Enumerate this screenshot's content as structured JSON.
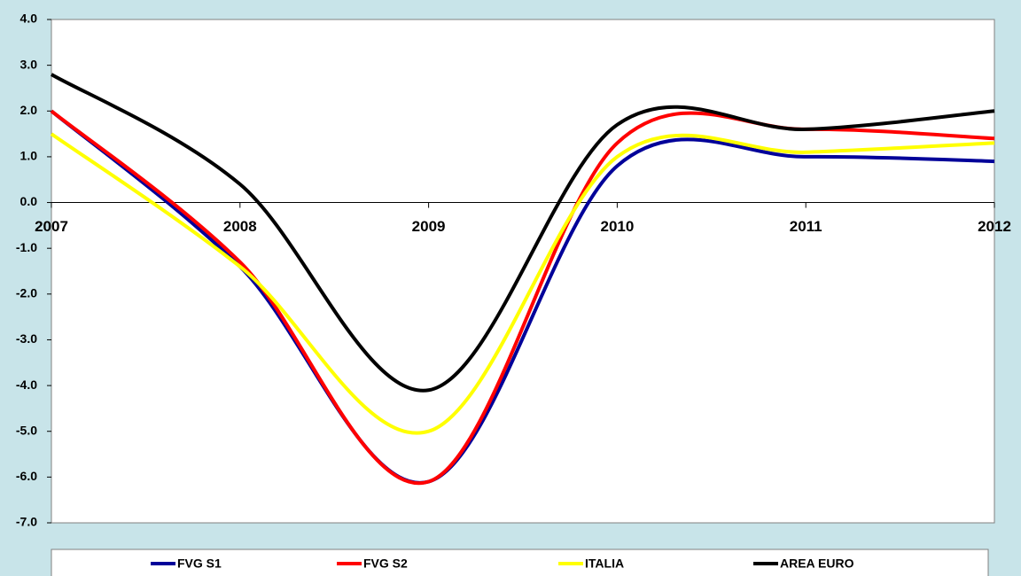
{
  "chart_data": {
    "type": "line",
    "categories": [
      "2007",
      "2008",
      "2009",
      "2010",
      "2011",
      "2012"
    ],
    "series": [
      {
        "name": "FVG S1",
        "color": "#000099",
        "values": [
          2.0,
          -1.4,
          -6.1,
          0.8,
          1.0,
          0.9
        ]
      },
      {
        "name": "FVG S2",
        "color": "#ff0000",
        "values": [
          2.0,
          -1.3,
          -6.1,
          1.3,
          1.6,
          1.4
        ]
      },
      {
        "name": "ITALIA",
        "color": "#ffff00",
        "values": [
          1.5,
          -1.4,
          -5.0,
          1.0,
          1.1,
          1.3
        ]
      },
      {
        "name": "AREA EURO",
        "color": "#000000",
        "values": [
          2.8,
          0.4,
          -4.1,
          1.7,
          1.6,
          2.0
        ]
      }
    ],
    "ylim": [
      -7,
      4
    ],
    "yticks": [
      {
        "value": 4,
        "label": "4.0"
      },
      {
        "value": 3,
        "label": "3.0"
      },
      {
        "value": 2,
        "label": "2.0"
      },
      {
        "value": 1,
        "label": "1.0"
      },
      {
        "value": 0,
        "label": "0.0"
      },
      {
        "value": -1,
        "label": "-1.0"
      },
      {
        "value": -2,
        "label": "-2.0"
      },
      {
        "value": -3,
        "label": "-3.0"
      },
      {
        "value": -4,
        "label": "-4.0"
      },
      {
        "value": -5,
        "label": "-5.0"
      },
      {
        "value": -6,
        "label": "-6.0"
      },
      {
        "value": -7,
        "label": "-7.0"
      }
    ],
    "smooth": true,
    "grid": false,
    "legend": "bottom"
  }
}
